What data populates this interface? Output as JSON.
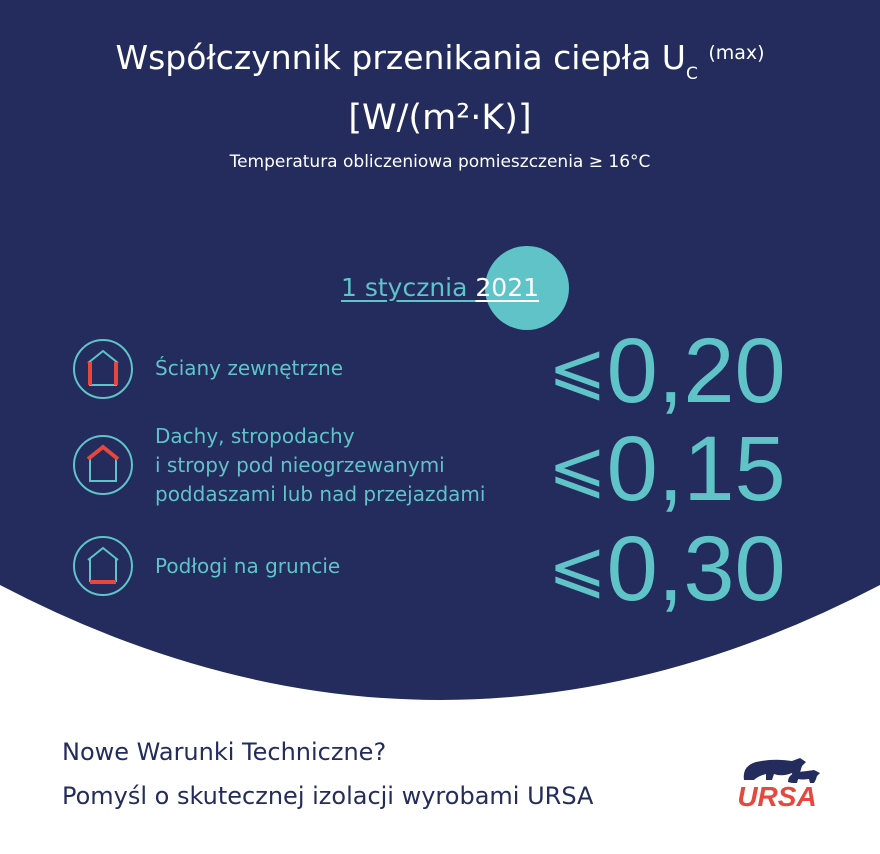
{
  "header": {
    "title_main": "Współczynnik przenikania ciepła U",
    "title_sub": "C",
    "title_max": "(max)",
    "title_unit": "[W/(m²·K)]",
    "subtitle": "Temperatura obliczeniowa pomieszczenia ≥ 16°C"
  },
  "date": {
    "day_month": "1 stycznia",
    "year": "2021"
  },
  "rows": [
    {
      "icon": "house-walls-icon",
      "label": "Ściany zewnętrzne",
      "symbol": "⩽",
      "value": "0,20"
    },
    {
      "icon": "house-roof-icon",
      "label_lines": [
        "Dachy, stropodachy",
        "i stropy pod nieogrzewanymi",
        "poddaszami lub nad przejazdami"
      ],
      "symbol": "⩽",
      "value": "0,15"
    },
    {
      "icon": "house-floor-icon",
      "label": "Podłogi na gruncie",
      "symbol": "⩽",
      "value": "0,30"
    }
  ],
  "footer": {
    "line1": "Nowe Warunki Techniczne?",
    "line2": "Pomyśl o skutecznej izolacji wyrobami URSA"
  },
  "logo": {
    "text": "URSA"
  },
  "colors": {
    "navy": "#232c5c",
    "teal": "#5fc3c8",
    "red": "#e8473e"
  }
}
